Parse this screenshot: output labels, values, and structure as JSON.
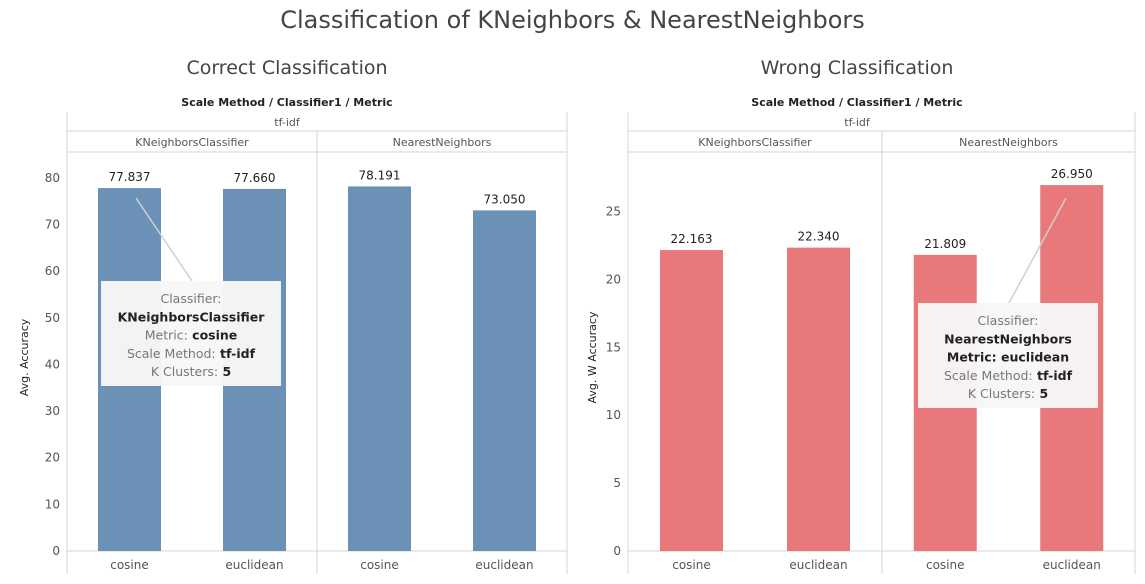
{
  "page_title": "Classification of KNeighbors & NearestNeighbors",
  "chart_data": [
    {
      "type": "bar",
      "title": "Correct Classification",
      "header": "Scale Method / Classifier1 / Metric",
      "scale_method": "tf-idf",
      "ylabel": "Avg. Accuracy",
      "ylim": [
        0,
        83
      ],
      "yticks": [
        0,
        10,
        20,
        30,
        40,
        50,
        60,
        70,
        80
      ],
      "color": "#6b91b7",
      "groups": [
        {
          "name": "KNeighborsClassifier",
          "categories": [
            "cosine",
            "euclidean"
          ],
          "values": [
            77.837,
            77.66
          ],
          "labels": [
            "77.837",
            "77.660"
          ]
        },
        {
          "name": "NearestNeighbors",
          "categories": [
            "cosine",
            "euclidean"
          ],
          "values": [
            78.191,
            73.05
          ],
          "labels": [
            "78.191",
            "73.050"
          ]
        }
      ],
      "tooltip": {
        "target": "KNeighborsClassifier / cosine",
        "lines": [
          {
            "label": "Classifier:",
            "value": ""
          },
          {
            "label": "",
            "value": "KNeighborsClassifier"
          },
          {
            "label": "Metric:",
            "value": "cosine"
          },
          {
            "label": "Scale Method:",
            "value": "tf-idf"
          },
          {
            "label": "K Clusters:",
            "value": "5"
          }
        ]
      }
    },
    {
      "type": "bar",
      "title": "Wrong Classification",
      "header": "Scale Method / Classifier1 / Metric",
      "scale_method": "tf-idf",
      "ylabel": "Avg. W Accuracy",
      "ylim": [
        0,
        28.5
      ],
      "yticks": [
        0,
        5,
        10,
        15,
        20,
        25
      ],
      "color": "#e8787a",
      "groups": [
        {
          "name": "KNeighborsClassifier",
          "categories": [
            "cosine",
            "euclidean"
          ],
          "values": [
            22.163,
            22.34
          ],
          "labels": [
            "22.163",
            "22.340"
          ]
        },
        {
          "name": "NearestNeighbors",
          "categories": [
            "cosine",
            "euclidean"
          ],
          "values": [
            21.809,
            26.95
          ],
          "labels": [
            "21.809",
            "26.950"
          ]
        }
      ],
      "tooltip": {
        "target": "NearestNeighbors / euclidean",
        "lines": [
          {
            "label": "Classifier:",
            "value": ""
          },
          {
            "label": "",
            "value": "NearestNeighbors"
          },
          {
            "label": "",
            "value": "Metric: euclidean"
          },
          {
            "label": "Scale Method:",
            "value": "tf-idf"
          },
          {
            "label": "K Clusters:",
            "value": "5"
          }
        ]
      }
    }
  ]
}
